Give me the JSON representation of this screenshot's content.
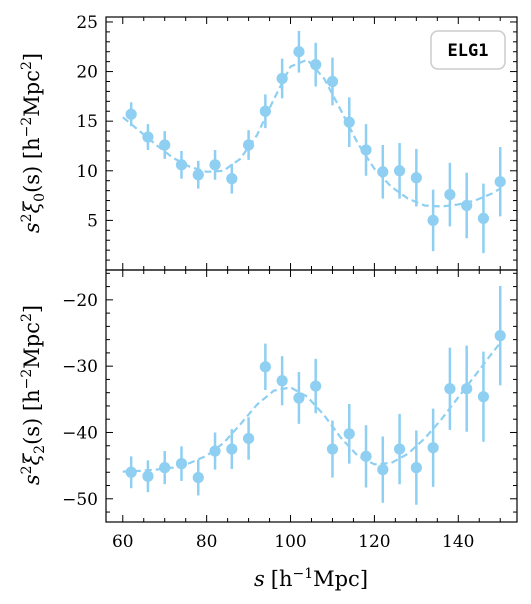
{
  "chart_data": [
    {
      "type": "scatter",
      "title": "",
      "xlabel": "s [h^-1 Mpc]",
      "ylabel": "s²ξ₀(s) [h⁻²Mpc²]",
      "xlim": [
        56,
        154
      ],
      "ylim": [
        0,
        25.5
      ],
      "yticks": [
        5,
        10,
        15,
        20,
        25
      ],
      "xticks": [
        60,
        80,
        100,
        120,
        140
      ],
      "legend": {
        "label": "ELG1",
        "placement": "top-right"
      },
      "color": "#8ecff2",
      "series": [
        {
          "kind": "points-with-errorbars",
          "x": [
            62,
            66,
            70,
            74,
            78,
            82,
            86,
            90,
            94,
            98,
            102,
            106,
            110,
            114,
            118,
            122,
            126,
            130,
            134,
            138,
            142,
            146,
            150
          ],
          "y": [
            15.7,
            13.4,
            12.6,
            10.6,
            9.6,
            10.6,
            9.2,
            12.6,
            16.0,
            19.3,
            22.0,
            20.7,
            19.0,
            14.9,
            12.1,
            9.9,
            10.0,
            9.3,
            5.0,
            7.6,
            6.5,
            5.2,
            8.9
          ],
          "yerr": [
            1.2,
            1.3,
            1.4,
            1.4,
            1.4,
            1.5,
            1.5,
            1.5,
            1.7,
            2.0,
            2.1,
            2.2,
            2.4,
            2.5,
            2.6,
            2.7,
            2.8,
            2.9,
            3.1,
            3.2,
            3.3,
            3.5,
            3.5
          ]
        },
        {
          "kind": "model-dashed",
          "x": [
            60,
            64,
            68,
            72,
            76,
            80,
            84,
            88,
            92,
            96,
            100,
            104,
            108,
            112,
            116,
            120,
            124,
            128,
            132,
            136,
            140,
            144,
            148,
            150
          ],
          "y": [
            15.4,
            14.0,
            12.6,
            11.3,
            10.4,
            9.9,
            10.0,
            11.2,
            13.6,
            17.2,
            20.5,
            21.2,
            19.3,
            16.1,
            12.8,
            10.2,
            8.4,
            7.2,
            6.5,
            6.4,
            6.6,
            7.0,
            7.7,
            8.2
          ]
        }
      ]
    },
    {
      "type": "scatter",
      "title": "",
      "xlabel": "s [h^-1 Mpc]",
      "ylabel": "s²ξ₂(s) [h⁻²Mpc²]",
      "xlim": [
        56,
        154
      ],
      "ylim": [
        -53.5,
        -15.5
      ],
      "yticks": [
        -50,
        -40,
        -30,
        -20
      ],
      "xticks": [
        60,
        80,
        100,
        120,
        140
      ],
      "color": "#8ecff2",
      "series": [
        {
          "kind": "points-with-errorbars",
          "x": [
            62,
            66,
            70,
            74,
            78,
            82,
            86,
            90,
            94,
            98,
            102,
            106,
            110,
            114,
            118,
            122,
            126,
            130,
            134,
            138,
            142,
            146,
            150
          ],
          "y": [
            -46.0,
            -46.6,
            -45.3,
            -44.7,
            -46.8,
            -42.8,
            -42.5,
            -40.9,
            -30.1,
            -32.2,
            -34.8,
            -33.0,
            -42.5,
            -40.2,
            -43.6,
            -45.6,
            -42.5,
            -45.3,
            -42.3,
            -33.4,
            -33.4,
            -34.6,
            -25.4
          ]
        },
        {
          "kind": "model-dashed",
          "x": [
            60,
            64,
            68,
            72,
            76,
            80,
            84,
            88,
            92,
            96,
            100,
            104,
            108,
            112,
            116,
            120,
            124,
            128,
            132,
            136,
            140,
            144,
            148,
            150
          ],
          "y": [
            -45.9,
            -45.8,
            -45.6,
            -45.3,
            -44.6,
            -43.5,
            -41.6,
            -38.8,
            -35.8,
            -33.7,
            -33.2,
            -34.6,
            -37.4,
            -40.8,
            -43.5,
            -44.8,
            -44.6,
            -43.2,
            -40.9,
            -38.0,
            -34.7,
            -31.4,
            -28.1,
            -26.5
          ]
        }
      ],
      "yerr": [
        2.4,
        2.4,
        2.5,
        2.6,
        2.7,
        2.8,
        3.0,
        3.2,
        3.5,
        3.7,
        3.9,
        4.1,
        4.3,
        4.5,
        4.7,
        5.0,
        5.3,
        5.6,
        5.9,
        6.2,
        6.5,
        6.8,
        7.5
      ]
    }
  ],
  "ticks": {
    "x": [
      "60",
      "80",
      "100",
      "120",
      "140"
    ],
    "top_y": [
      "5",
      "10",
      "15",
      "20",
      "25"
    ],
    "bottom_y": [
      "−50",
      "−40",
      "−30",
      "−20"
    ]
  },
  "labels": {
    "top_ylabel_main": "s",
    "top_ylabel_sup": "2",
    "top_ylabel_xi": "ξ",
    "top_ylabel_sub": "0",
    "top_ylabel_arg": "(s) [h",
    "top_ylabel_exp": "−2",
    "top_ylabel_unit": "Mpc",
    "top_ylabel_unit_exp": "2",
    "top_ylabel_close": "]",
    "bottom_ylabel_main": "s",
    "bottom_ylabel_sup": "2",
    "bottom_ylabel_xi": "ξ",
    "bottom_ylabel_sub": "2",
    "bottom_ylabel_arg": "(s) [h",
    "bottom_ylabel_exp": "−2",
    "bottom_ylabel_unit": "Mpc",
    "bottom_ylabel_unit_exp": "2",
    "bottom_ylabel_close": "]",
    "xlabel_s": "s",
    "xlabel_open": "[h",
    "xlabel_exp": "−1",
    "xlabel_unit": "Mpc]"
  }
}
